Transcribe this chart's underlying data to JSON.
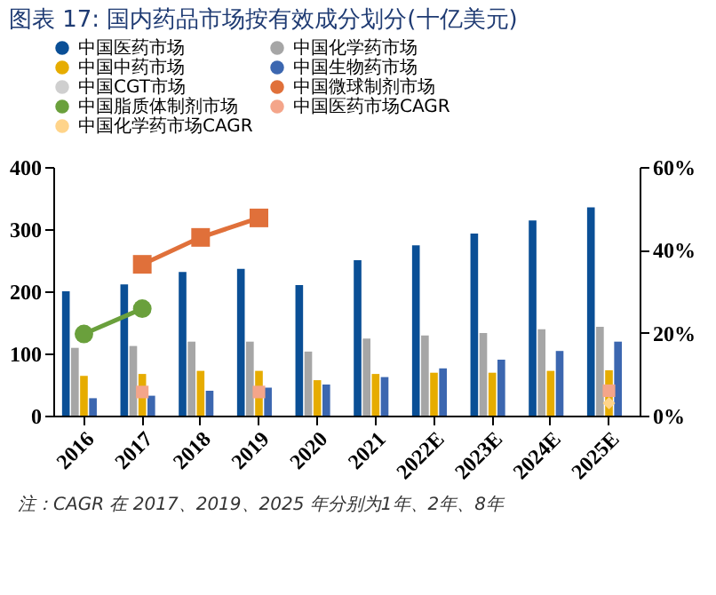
{
  "chart_data": {
    "type": "bar",
    "title": "图表 17: 国内药品市场按有效成分划分(十亿美元)",
    "categories": [
      "2016",
      "2017",
      "2018",
      "2019",
      "2020",
      "2021",
      "2022E",
      "2023E",
      "2024E",
      "2025E"
    ],
    "series": [
      {
        "name": "中国医药市场",
        "color": "#0a4f96",
        "type": "bar",
        "values": [
          200,
          211,
          231,
          236,
          210,
          250,
          274,
          293,
          314,
          335
        ]
      },
      {
        "name": "中国化学药市场",
        "color": "#a6a6a6",
        "type": "bar",
        "values": [
          109,
          112,
          119,
          119,
          103,
          124,
          129,
          133,
          139,
          143
        ]
      },
      {
        "name": "中国中药市场",
        "color": "#e6ac00",
        "type": "bar",
        "values": [
          64,
          67,
          72,
          72,
          57,
          67,
          69,
          69,
          72,
          73
        ]
      },
      {
        "name": "中国生物药市场",
        "color": "#3c67b0",
        "type": "bar",
        "values": [
          28,
          32,
          40,
          45,
          50,
          62,
          76,
          90,
          104,
          119
        ]
      },
      {
        "name": "中国CGT市场",
        "color": "#cfcfcf",
        "type": "bar",
        "values": [
          null,
          null,
          null,
          null,
          null,
          null,
          null,
          null,
          null,
          null
        ]
      },
      {
        "name": "中国微球制剂市场",
        "color": "#e0703a",
        "type": "line",
        "axis": "y2",
        "marker": "square",
        "values": [
          null,
          36.5,
          43,
          47.7,
          null,
          null,
          null,
          null,
          null,
          null
        ]
      },
      {
        "name": "中国脂质体制剂市场",
        "color": "#6aa03c",
        "type": "line",
        "axis": "y2",
        "marker": "circle",
        "values": [
          19.7,
          25.8,
          null,
          null,
          null,
          null,
          null,
          null,
          null,
          null
        ]
      },
      {
        "name": "中国医药市场CAGR",
        "color": "#f4a58a",
        "type": "scatter",
        "axis": "y2",
        "marker": "square",
        "values": [
          null,
          5.7,
          null,
          5.7,
          null,
          null,
          null,
          null,
          null,
          6
        ]
      },
      {
        "name": "中国化学药市场CAGR",
        "color": "#ffd48a",
        "type": "scatter",
        "axis": "y2",
        "marker": "diamond",
        "values": [
          null,
          null,
          null,
          null,
          null,
          null,
          null,
          null,
          null,
          3
        ]
      }
    ],
    "ylim": [
      0,
      400
    ],
    "yticks": [
      0,
      100,
      200,
      300,
      400
    ],
    "y2lim": [
      0,
      60
    ],
    "y2ticks": [
      {
        "value": 0,
        "label": "0%"
      },
      {
        "value": 20,
        "label": "20%"
      },
      {
        "value": 40,
        "label": "40%"
      },
      {
        "value": 60,
        "label": "60%"
      }
    ],
    "legend": "top",
    "grid": false,
    "annotations": [
      "注：CAGR 在 2017、2019、2025 年分别为1年、2年、8年"
    ]
  }
}
